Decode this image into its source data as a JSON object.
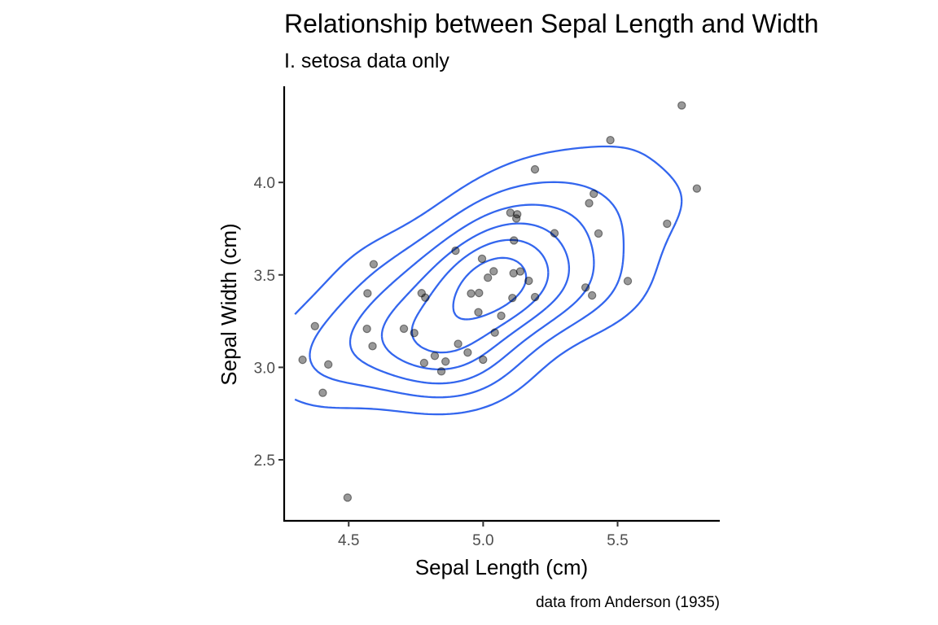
{
  "chart_data": {
    "type": "scatter",
    "title": "Relationship between Sepal Length and Width",
    "subtitle": "I. setosa data only",
    "xlabel": "Sepal Length (cm)",
    "ylabel": "Sepal Width (cm)",
    "caption": "data from Anderson (1935)",
    "xlim": [
      4.26,
      5.88
    ],
    "ylim": [
      2.17,
      4.52
    ],
    "x_ticks": [
      "4.5",
      "5.0",
      "5.5"
    ],
    "y_ticks": [
      "2.5",
      "3.0",
      "3.5",
      "4.0"
    ],
    "grid": false,
    "legend": "none",
    "colors": {
      "points": "#000000",
      "contours": "#3366ee"
    },
    "points": [
      {
        "x": 5.1,
        "y": 3.5
      },
      {
        "x": 4.9,
        "y": 3.0
      },
      {
        "x": 4.7,
        "y": 3.2
      },
      {
        "x": 4.6,
        "y": 3.1
      },
      {
        "x": 5.0,
        "y": 3.6
      },
      {
        "x": 5.4,
        "y": 3.9
      },
      {
        "x": 4.6,
        "y": 3.4
      },
      {
        "x": 5.0,
        "y": 3.4
      },
      {
        "x": 4.4,
        "y": 2.9
      },
      {
        "x": 4.9,
        "y": 3.1
      },
      {
        "x": 5.4,
        "y": 3.7
      },
      {
        "x": 4.8,
        "y": 3.4
      },
      {
        "x": 4.8,
        "y": 3.0
      },
      {
        "x": 4.3,
        "y": 3.0
      },
      {
        "x": 5.8,
        "y": 4.0
      },
      {
        "x": 5.7,
        "y": 4.4
      },
      {
        "x": 5.4,
        "y": 3.9
      },
      {
        "x": 5.1,
        "y": 3.5
      },
      {
        "x": 5.7,
        "y": 3.8
      },
      {
        "x": 5.1,
        "y": 3.8
      },
      {
        "x": 5.4,
        "y": 3.4
      },
      {
        "x": 5.1,
        "y": 3.7
      },
      {
        "x": 4.6,
        "y": 3.6
      },
      {
        "x": 5.1,
        "y": 3.3
      },
      {
        "x": 4.8,
        "y": 3.4
      },
      {
        "x": 5.0,
        "y": 3.0
      },
      {
        "x": 5.0,
        "y": 3.4
      },
      {
        "x": 5.2,
        "y": 3.5
      },
      {
        "x": 5.2,
        "y": 3.4
      },
      {
        "x": 4.7,
        "y": 3.2
      },
      {
        "x": 4.8,
        "y": 3.1
      },
      {
        "x": 5.4,
        "y": 3.4
      },
      {
        "x": 5.2,
        "y": 4.1
      },
      {
        "x": 5.5,
        "y": 4.2
      },
      {
        "x": 4.9,
        "y": 3.1
      },
      {
        "x": 5.0,
        "y": 3.2
      },
      {
        "x": 5.5,
        "y": 3.5
      },
      {
        "x": 4.9,
        "y": 3.6
      },
      {
        "x": 4.4,
        "y": 3.0
      },
      {
        "x": 5.1,
        "y": 3.4
      },
      {
        "x": 5.0,
        "y": 3.5
      },
      {
        "x": 4.5,
        "y": 2.3
      },
      {
        "x": 4.4,
        "y": 3.2
      },
      {
        "x": 5.0,
        "y": 3.5
      },
      {
        "x": 5.1,
        "y": 3.8
      },
      {
        "x": 4.8,
        "y": 3.0
      },
      {
        "x": 5.1,
        "y": 3.8
      },
      {
        "x": 4.6,
        "y": 3.2
      },
      {
        "x": 5.3,
        "y": 3.7
      },
      {
        "x": 5.0,
        "y": 3.3
      }
    ],
    "density_contours": true
  }
}
